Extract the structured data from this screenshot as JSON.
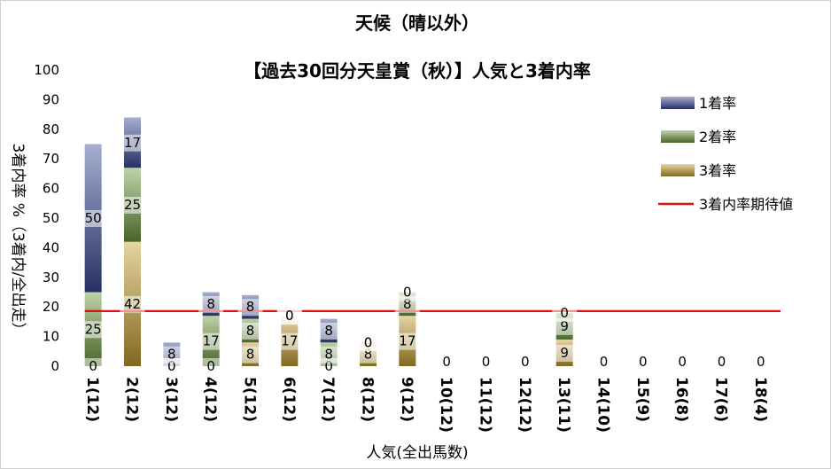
{
  "chart_data": {
    "type": "bar",
    "stacked": true,
    "title": "天候（晴以外）",
    "subtitle": "【過去30回分天皇賞（秋）】人気と3着内率",
    "xlabel": "人気(全出馬数)",
    "ylabel": "3着内率 %（3着内/全出走）",
    "ylim": [
      0,
      100
    ],
    "yticks": [
      0,
      10,
      20,
      30,
      40,
      50,
      60,
      70,
      80,
      90,
      100
    ],
    "grid": false,
    "legend_position": "right",
    "categories": [
      "1(12)",
      "2(12)",
      "3(12)",
      "4(12)",
      "5(12)",
      "6(12)",
      "7(12)",
      "8(12)",
      "9(12)",
      "10(12)",
      "11(12)",
      "12(12)",
      "13(11)",
      "14(10)",
      "15(9)",
      "16(8)",
      "17(6)",
      "18(4)"
    ],
    "series": [
      {
        "name": "3着率",
        "color": "#c8a030",
        "values": [
          0,
          42,
          0,
          0,
          8,
          17,
          0,
          8,
          17,
          0,
          0,
          0,
          9,
          0,
          0,
          0,
          0,
          0
        ]
      },
      {
        "name": "2着率",
        "color": "#6f9c3e",
        "values": [
          25,
          25,
          0,
          17,
          8,
          0,
          8,
          0,
          8,
          0,
          0,
          0,
          9,
          0,
          0,
          0,
          0,
          0
        ]
      },
      {
        "name": "1着率",
        "color": "#3a4a96",
        "values": [
          50,
          17,
          8,
          8,
          8,
          0,
          8,
          0,
          0,
          0,
          0,
          0,
          0,
          0,
          0,
          0,
          0,
          0
        ]
      }
    ],
    "reference_line": {
      "name": "3着内率期待値",
      "value": 18.6,
      "color": "#e01010"
    },
    "legend": [
      {
        "label": "1着率",
        "color": "#3a4a96",
        "kind": "bar"
      },
      {
        "label": "2着率",
        "color": "#6f9c3e",
        "kind": "bar"
      },
      {
        "label": "3着率",
        "color": "#c8a030",
        "kind": "bar"
      },
      {
        "label": "3着内率期待値",
        "color": "#e01010",
        "kind": "line"
      }
    ]
  }
}
